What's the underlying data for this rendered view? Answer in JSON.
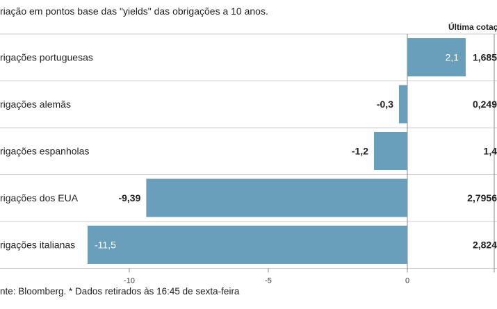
{
  "chart_data": {
    "type": "bar",
    "orientation": "horizontal",
    "subtitle": "riação em pontos base das \"yields\" das obrigações a 10 anos.",
    "last_quote_header": "Última cotaç",
    "categories": [
      "rigações portuguesas",
      "rigações alemãs",
      "rigações espanholas",
      "rigações dos EUA",
      "rigações italianas"
    ],
    "values": [
      2.1,
      -0.3,
      -1.2,
      -9.39,
      -11.5
    ],
    "value_labels": [
      "2,1",
      "-0,3",
      "-1,2",
      "-9,39",
      "-11,5"
    ],
    "last_quotes": [
      "1,685",
      "0,249",
      "1,4",
      "2,7956",
      "2,824"
    ],
    "x_ticks": [
      -10,
      -5,
      0
    ],
    "x_tick_labels": [
      "-10",
      "-5",
      "0"
    ],
    "xlim": [
      -14.6,
      3.2
    ],
    "source": "nte: Bloomberg.  * Dados retirados às 16:45 de sexta-feira",
    "bar_color": "#6a9fbb",
    "grid_color": "#cccccc"
  }
}
